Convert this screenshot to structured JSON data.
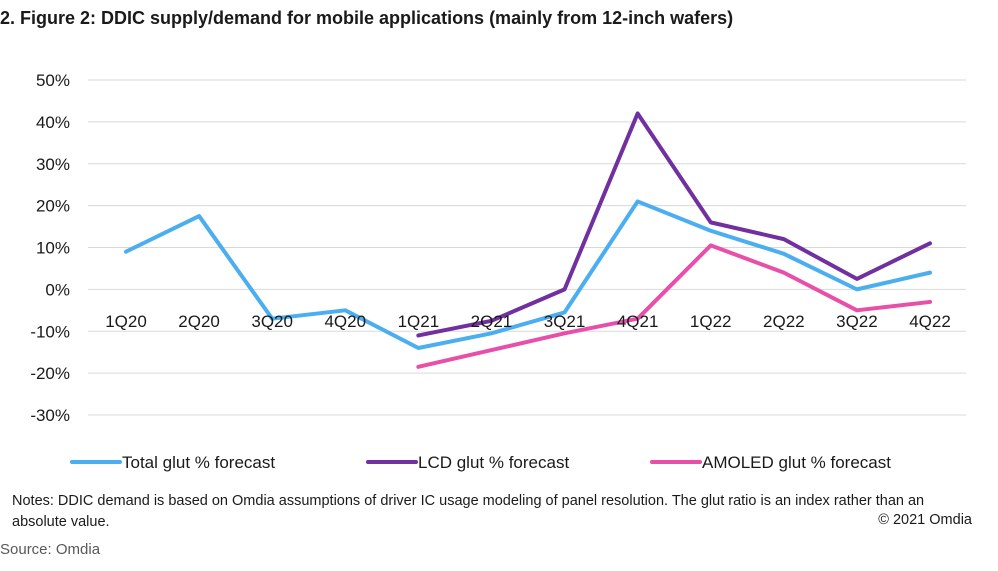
{
  "title": "2. Figure 2: DDIC supply/demand for mobile applications (mainly from 12-inch wafers)",
  "notes": "Notes: DDIC demand is based on Omdia assumptions of driver IC usage modeling of panel resolution. The glut ratio is an index rather than an absolute value.",
  "copyright": "© 2021 Omdia",
  "source": "Source: Omdia",
  "chart_data": {
    "type": "line",
    "title": "",
    "xlabel": "",
    "ylabel": "",
    "categories": [
      "1Q20",
      "2Q20",
      "3Q20",
      "4Q20",
      "1Q21",
      "2Q21",
      "3Q21",
      "4Q21",
      "1Q22",
      "2Q22",
      "3Q22",
      "4Q22"
    ],
    "ylim": [
      -30,
      50
    ],
    "yticks": [
      50,
      40,
      30,
      20,
      10,
      0,
      -10,
      -20,
      -30
    ],
    "ytick_labels": [
      "50%",
      "40%",
      "30%",
      "20%",
      "10%",
      "0%",
      "-10%",
      "-20%",
      "-30%"
    ],
    "grid": true,
    "legend_position": "bottom",
    "series": [
      {
        "name": "Total glut % forecast",
        "color": "#4aaef0",
        "values": [
          9,
          17.5,
          -7,
          -5,
          -14,
          -10.5,
          -5.5,
          21,
          14,
          8.5,
          0,
          4
        ]
      },
      {
        "name": "LCD glut % forecast",
        "color": "#7030a0",
        "values": [
          null,
          null,
          null,
          null,
          -11,
          -7.5,
          0,
          42,
          16,
          12,
          2.5,
          11
        ]
      },
      {
        "name": "AMOLED glut % forecast",
        "color": "#e84fa8",
        "values": [
          null,
          null,
          null,
          null,
          -18.5,
          -14.5,
          -10.5,
          -7,
          10.5,
          4,
          -5,
          -3
        ]
      }
    ]
  }
}
